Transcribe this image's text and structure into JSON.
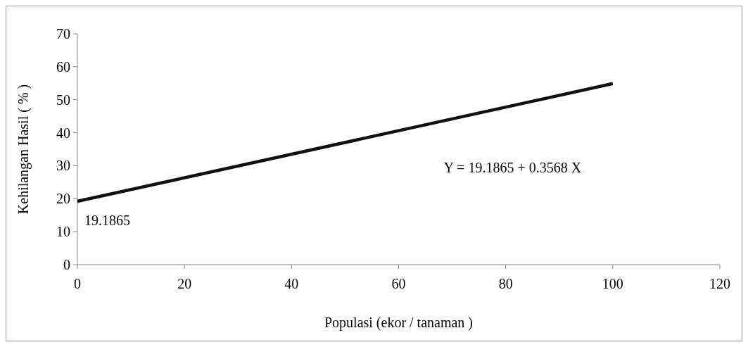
{
  "chart_data": {
    "type": "line",
    "xlabel": "Populasi (ekor / tanaman )",
    "ylabel": "Kehilangan Hasil ( % )",
    "x": [
      0,
      100
    ],
    "series": [
      {
        "color": "#111111",
        "values": [
          19.2,
          54.9
        ]
      }
    ],
    "xlim": [
      0,
      120
    ],
    "xticks": [
      0,
      20,
      40,
      60,
      80,
      100,
      120
    ],
    "ylim": [
      0,
      70
    ],
    "yticks": [
      0,
      10,
      20,
      30,
      40,
      50,
      60,
      70
    ],
    "grid": false,
    "line_style": "solid",
    "annotations": [
      "Y = 19.1865 + 0.3568 X",
      {
        "text": "19.1865",
        "x": 0,
        "y": 19.1865
      }
    ]
  }
}
